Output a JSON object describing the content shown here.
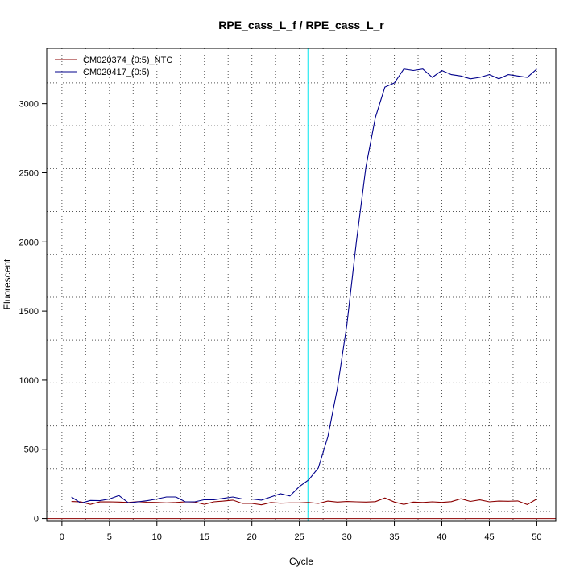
{
  "chart_data": {
    "type": "line",
    "title": "RPE_cass_L_f / RPE_cass_L_r",
    "xlabel": "Cycle",
    "ylabel": "Fluorescent",
    "xlim": [
      -1.6,
      52.0
    ],
    "ylim": [
      -20,
      3400
    ],
    "x_ticks": [
      0,
      5,
      10,
      15,
      20,
      25,
      30,
      35,
      40,
      45,
      50
    ],
    "y_ticks": [
      0,
      500,
      1000,
      1500,
      2000,
      2500,
      3000
    ],
    "grid": true,
    "legend_position": "top-left",
    "threshold_x": 25.9,
    "baseline_y": 0,
    "x": [
      1,
      2,
      3,
      4,
      5,
      6,
      7,
      8,
      9,
      10,
      11,
      12,
      13,
      14,
      15,
      16,
      17,
      18,
      19,
      20,
      21,
      22,
      23,
      24,
      25,
      26,
      27,
      28,
      29,
      30,
      31,
      32,
      33,
      34,
      35,
      36,
      37,
      38,
      39,
      40,
      41,
      42,
      43,
      44,
      45,
      46,
      47,
      48,
      49,
      50
    ],
    "series": [
      {
        "name": "CM020374_(0:5)_NTC",
        "color": "#8b0000",
        "values": [
          122,
          119,
          101,
          119,
          120,
          118,
          115,
          121,
          117,
          115,
          112,
          115,
          120,
          118,
          102,
          120,
          125,
          132,
          108,
          108,
          98,
          115,
          110,
          112,
          112,
          115,
          108,
          125,
          118,
          122,
          120,
          118,
          121,
          148,
          118,
          101,
          118,
          115,
          120,
          116,
          121,
          142,
          123,
          134,
          120,
          125,
          124,
          126,
          100,
          140
        ]
      },
      {
        "name": "CM020417_(0:5)",
        "color": "#00008b",
        "values": [
          155,
          110,
          130,
          128,
          140,
          165,
          112,
          120,
          128,
          140,
          155,
          155,
          120,
          120,
          135,
          135,
          145,
          155,
          140,
          140,
          132,
          155,
          178,
          162,
          230,
          280,
          365,
          590,
          940,
          1400,
          2000,
          2540,
          2900,
          3120,
          3150,
          3250,
          3240,
          3250,
          3190,
          3240,
          3210,
          3200,
          3180,
          3190,
          3210,
          3180,
          3210,
          3200,
          3190,
          3250
        ]
      }
    ]
  }
}
